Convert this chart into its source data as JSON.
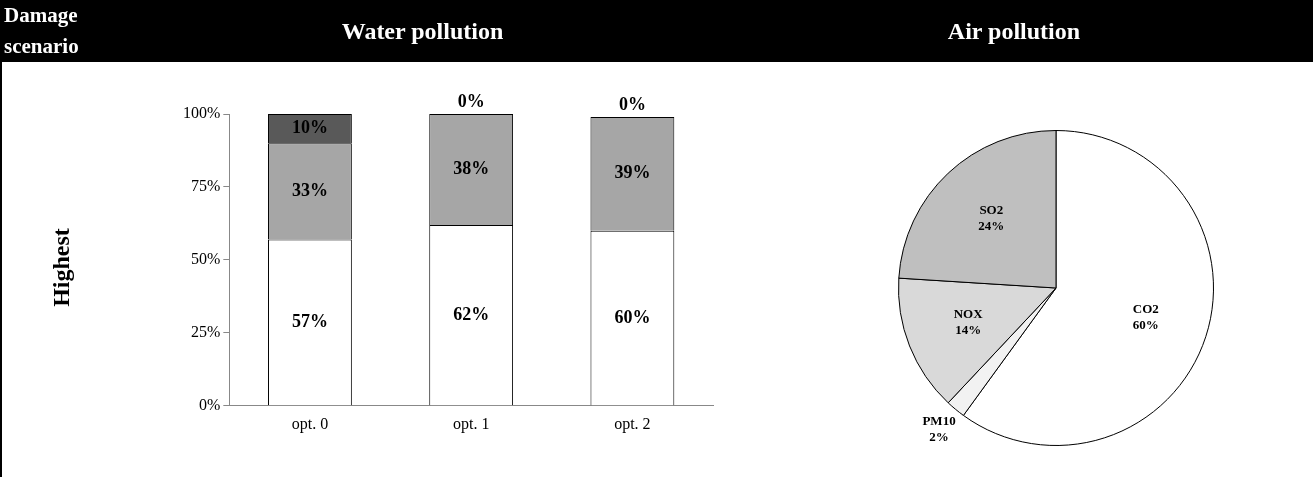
{
  "chart_data": [
    {
      "type": "other",
      "title": "Damage scenario",
      "annotations": [
        "Highest"
      ]
    },
    {
      "type": "bar",
      "title": "Water pollution",
      "stacked": true,
      "categories": [
        "opt. 0",
        "opt. 1",
        "opt. 2"
      ],
      "ylim": [
        0,
        100
      ],
      "yticks": [
        {
          "value": 0,
          "label": "0%"
        },
        {
          "value": 25,
          "label": "25%"
        },
        {
          "value": 50,
          "label": "50%"
        },
        {
          "value": 75,
          "label": "75%"
        },
        {
          "value": 100,
          "label": "100%"
        }
      ],
      "grid": false,
      "legend": false,
      "series": [
        {
          "color": "#ffffff",
          "values": [
            57,
            62,
            60
          ],
          "value_labels": [
            "57%",
            "62%",
            "60%"
          ]
        },
        {
          "color": "#a6a6a6",
          "values": [
            33,
            38,
            39
          ],
          "value_labels": [
            "33%",
            "38%",
            "39%"
          ]
        },
        {
          "color": "#595959",
          "values": [
            10,
            0,
            0
          ],
          "value_labels": [
            "10%",
            "0%",
            "0%"
          ]
        }
      ]
    },
    {
      "type": "pie",
      "title": "Air pollution",
      "categories": [
        "CO2",
        "PM10",
        "NOX",
        "SO2"
      ],
      "values": [
        60,
        2,
        14,
        24
      ],
      "colors": [
        "#ffffff",
        "#f2f2f2",
        "#d9d9d9",
        "#bfbfbf"
      ],
      "value_labels": [
        "60%",
        "2%",
        "14%",
        "24%"
      ],
      "legend": false
    }
  ]
}
